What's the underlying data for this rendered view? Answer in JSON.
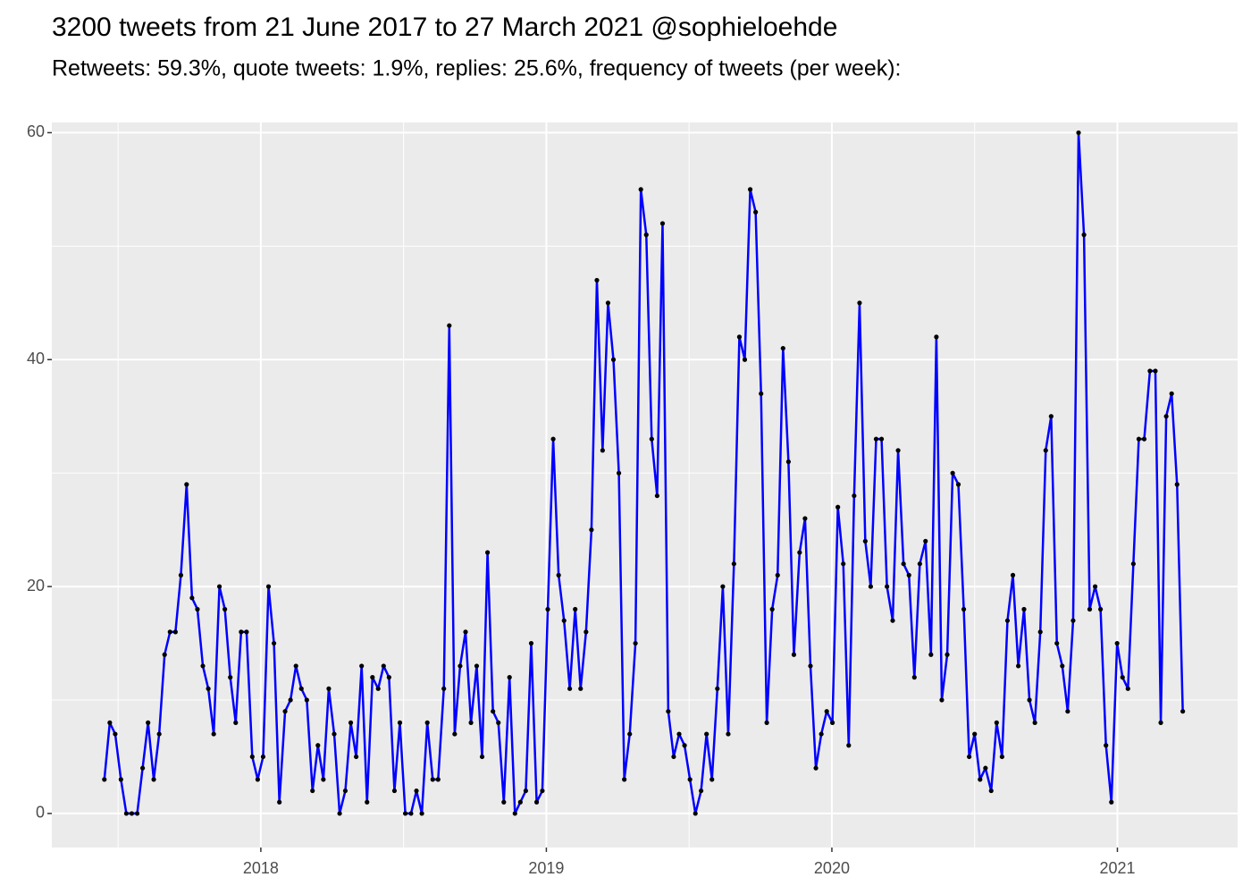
{
  "chart_data": {
    "type": "line",
    "title": "3200 tweets from 21 June 2017 to 27 March 2021 @sophieloehde",
    "subtitle": "Retweets: 59.3%, quote tweets: 1.9%, replies: 25.6%, frequency of tweets (per week):",
    "x": [
      2017.452,
      2017.471,
      2017.49,
      2017.51,
      2017.529,
      2017.548,
      2017.567,
      2017.586,
      2017.605,
      2017.625,
      2017.644,
      2017.663,
      2017.682,
      2017.701,
      2017.72,
      2017.74,
      2017.759,
      2017.778,
      2017.797,
      2017.816,
      2017.835,
      2017.855,
      2017.874,
      2017.893,
      2017.912,
      2017.931,
      2017.95,
      2017.97,
      2017.989,
      2018.008,
      2018.027,
      2018.046,
      2018.065,
      2018.085,
      2018.104,
      2018.123,
      2018.142,
      2018.161,
      2018.181,
      2018.2,
      2018.219,
      2018.238,
      2018.257,
      2018.276,
      2018.296,
      2018.315,
      2018.334,
      2018.353,
      2018.372,
      2018.391,
      2018.411,
      2018.43,
      2018.449,
      2018.468,
      2018.487,
      2018.506,
      2018.526,
      2018.545,
      2018.564,
      2018.583,
      2018.602,
      2018.621,
      2018.641,
      2018.66,
      2018.679,
      2018.698,
      2018.717,
      2018.736,
      2018.756,
      2018.775,
      2018.794,
      2018.813,
      2018.832,
      2018.851,
      2018.871,
      2018.89,
      2018.909,
      2018.928,
      2018.947,
      2018.966,
      2018.986,
      2019.005,
      2019.024,
      2019.043,
      2019.062,
      2019.082,
      2019.101,
      2019.12,
      2019.139,
      2019.158,
      2019.177,
      2019.197,
      2019.216,
      2019.235,
      2019.254,
      2019.273,
      2019.292,
      2019.312,
      2019.331,
      2019.35,
      2019.369,
      2019.388,
      2019.407,
      2019.427,
      2019.446,
      2019.465,
      2019.484,
      2019.503,
      2019.522,
      2019.542,
      2019.561,
      2019.58,
      2019.599,
      2019.618,
      2019.637,
      2019.657,
      2019.676,
      2019.695,
      2019.714,
      2019.733,
      2019.752,
      2019.772,
      2019.791,
      2019.81,
      2019.829,
      2019.848,
      2019.867,
      2019.887,
      2019.906,
      2019.925,
      2019.944,
      2019.963,
      2019.982,
      2020.002,
      2020.021,
      2020.04,
      2020.059,
      2020.078,
      2020.097,
      2020.117,
      2020.136,
      2020.155,
      2020.174,
      2020.193,
      2020.213,
      2020.232,
      2020.251,
      2020.27,
      2020.289,
      2020.308,
      2020.328,
      2020.347,
      2020.366,
      2020.385,
      2020.404,
      2020.423,
      2020.443,
      2020.462,
      2020.481,
      2020.5,
      2020.519,
      2020.538,
      2020.558,
      2020.577,
      2020.596,
      2020.615,
      2020.634,
      2020.653,
      2020.673,
      2020.692,
      2020.711,
      2020.73,
      2020.749,
      2020.768,
      2020.788,
      2020.807,
      2020.826,
      2020.845,
      2020.864,
      2020.883,
      2020.903,
      2020.922,
      2020.941,
      2020.96,
      2020.979,
      2020.999,
      2021.018,
      2021.037,
      2021.056,
      2021.075,
      2021.094,
      2021.114,
      2021.133,
      2021.152,
      2021.171,
      2021.19,
      2021.209,
      2021.229
    ],
    "series": [
      {
        "color": "#0000ff",
        "point_color": "#000000",
        "values": [
          3,
          8,
          7,
          3,
          0,
          0,
          0,
          4,
          8,
          3,
          7,
          14,
          16,
          16,
          21,
          29,
          19,
          18,
          13,
          11,
          7,
          20,
          18,
          12,
          8,
          16,
          16,
          5,
          3,
          5,
          20,
          15,
          1,
          9,
          10,
          13,
          11,
          10,
          2,
          6,
          3,
          11,
          7,
          0,
          2,
          8,
          5,
          13,
          1,
          12,
          11,
          13,
          12,
          2,
          8,
          0,
          0,
          2,
          0,
          8,
          3,
          3,
          11,
          43,
          7,
          13,
          16,
          8,
          13,
          5,
          23,
          9,
          8,
          1,
          12,
          0,
          1,
          2,
          15,
          1,
          2,
          18,
          33,
          21,
          17,
          11,
          18,
          11,
          16,
          25,
          47,
          32,
          45,
          40,
          30,
          3,
          7,
          15,
          55,
          51,
          33,
          28,
          52,
          9,
          5,
          7,
          6,
          3,
          0,
          2,
          7,
          3,
          11,
          20,
          7,
          22,
          42,
          40,
          55,
          53,
          37,
          8,
          18,
          21,
          41,
          31,
          14,
          23,
          26,
          13,
          4,
          7,
          9,
          8,
          27,
          22,
          6,
          28,
          45,
          24,
          20,
          33,
          33,
          20,
          17,
          32,
          22,
          21,
          12,
          22,
          24,
          14,
          42,
          10,
          14,
          30,
          29,
          18,
          5,
          7,
          3,
          4,
          2,
          8,
          5,
          17,
          21,
          13,
          18,
          10,
          8,
          16,
          32,
          35,
          15,
          13,
          9,
          17,
          60,
          51,
          18,
          20,
          18,
          6,
          1,
          15,
          12,
          11,
          22,
          33,
          33,
          39,
          39,
          8,
          35,
          37,
          29,
          9
        ]
      }
    ],
    "xlim": [
      2017.268,
      2021.421
    ],
    "xticks": [
      2018,
      2019,
      2020,
      2021
    ],
    "ylim": [
      -3,
      60.9
    ],
    "yticks": [
      0,
      20,
      40,
      60
    ],
    "grid": true,
    "panel_color": "#ebebeb"
  }
}
